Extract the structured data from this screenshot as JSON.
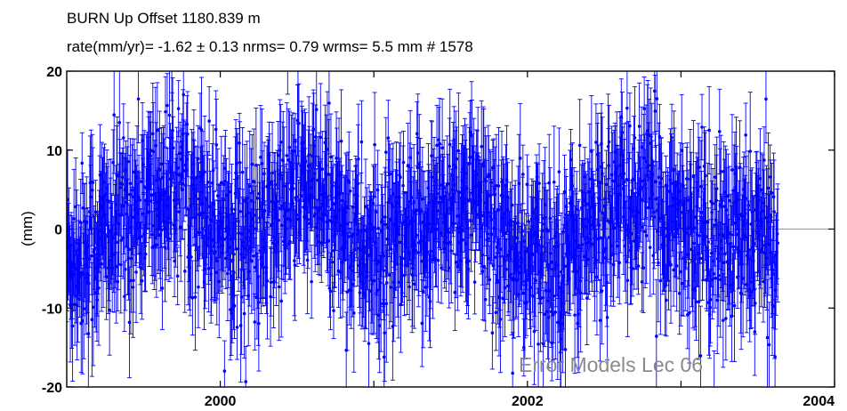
{
  "colors": {
    "series": "#0000ff",
    "zero_line": "#9a9a9a",
    "frame": "#000000",
    "watermark": "#8a8a8a"
  },
  "watermark": "Error Models Lec 06",
  "chart_data": {
    "type": "scatter",
    "title_line1": "BURN  Up Offset      1180.839 m",
    "title_line2": "rate(mm/yr)=   -1.62 ±  0.13  nrms=  0.79  wrms=   5.5 mm # 1578",
    "xlabel": "",
    "ylabel": "(mm)",
    "xlim": [
      1999.0,
      2004.0
    ],
    "ylim": [
      -20,
      20
    ],
    "x_ticks": [
      2000,
      2001,
      2002,
      2003,
      2004
    ],
    "x_tick_labels": [
      "2000",
      "",
      "2002",
      "",
      "2004"
    ],
    "y_ticks": [
      -20,
      -10,
      0,
      10,
      20
    ],
    "y_tick_labels": [
      "-20",
      "-10",
      "0",
      "10",
      "20"
    ],
    "zero_line": true,
    "grid": false,
    "series": [
      {
        "start_year": 1999.0,
        "end_year": 2003.63,
        "count": 1578,
        "rate_mm_per_yr": -1.62,
        "seasonal_amplitude_mm": 5.0,
        "scatter_mm": 5.5,
        "error_bar_mm": 5.0,
        "annual_envelope": [
          {
            "x": 1999.0,
            "y": -4
          },
          {
            "x": 1999.25,
            "y": -1
          },
          {
            "x": 1999.5,
            "y": 3
          },
          {
            "x": 1999.75,
            "y": 6
          },
          {
            "x": 2000.0,
            "y": 1
          },
          {
            "x": 2000.25,
            "y": -2
          },
          {
            "x": 2000.5,
            "y": 5
          },
          {
            "x": 2000.75,
            "y": 2
          },
          {
            "x": 2001.0,
            "y": -4
          },
          {
            "x": 2001.25,
            "y": -2
          },
          {
            "x": 2001.5,
            "y": 4
          },
          {
            "x": 2001.75,
            "y": 1
          },
          {
            "x": 2002.0,
            "y": -5
          },
          {
            "x": 2002.25,
            "y": -3
          },
          {
            "x": 2002.5,
            "y": 2
          },
          {
            "x": 2002.75,
            "y": 4
          },
          {
            "x": 2003.0,
            "y": 1
          },
          {
            "x": 2003.25,
            "y": -2
          },
          {
            "x": 2003.5,
            "y": -1
          },
          {
            "x": 2003.63,
            "y": -2
          }
        ]
      }
    ]
  }
}
